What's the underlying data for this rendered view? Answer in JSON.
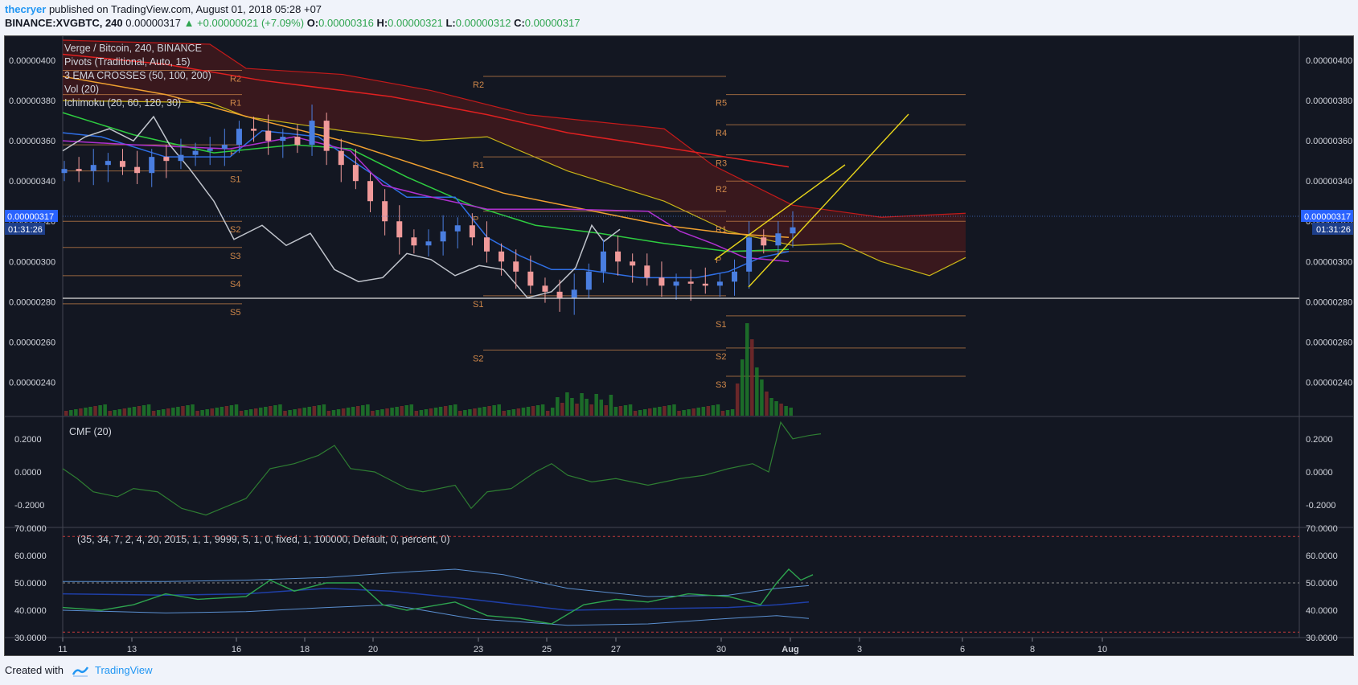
{
  "header": {
    "username": "thecryer",
    "published_text": "published on TradingView.com, August 01, 2018 05:28 +07",
    "symbol_line": "BINANCE:XVGBTC, 240",
    "last_price": "0.00000317",
    "change": "▲ +0.00000021 (+7.09%)",
    "o_label": "O:",
    "o_value": "0.00000316",
    "h_label": "H:",
    "h_value": "0.00000321",
    "l_label": "L:",
    "l_value": "0.00000312",
    "c_label": "C:",
    "c_value": "0.00000317"
  },
  "legend": {
    "title": "Verge / Bitcoin, 240, BINANCE",
    "pivots": "Pivots (Traditional, Auto, 15)",
    "ema": "3 EMA CROSSES (50, 100, 200)",
    "vol": "Vol (20)",
    "ichimoku": "Ichimoku (20, 60, 120, 30)"
  },
  "cmf_label": "CMF (20)",
  "osc_label": "(35, 34, 7, 2, 4, 20, 2015, 1, 1, 9999, 5, 1, 0, fixed, 1, 100000, Default, 0, percent, 0)",
  "price_badge": {
    "value": "0.00000317",
    "countdown": "01:31:26"
  },
  "footer": {
    "created_with": "Created with",
    "brand": "TradingView"
  },
  "colors": {
    "background": "#131722",
    "up": "#4a7ee0",
    "down": "#f09a9a",
    "pivot": "#d0884a",
    "ema_fast": "#2ecc40",
    "ema_mid": "#f0a030",
    "ema_slow": "#e02020",
    "cloud": "#5a1a1a"
  },
  "chart_data": [
    {
      "type": "candlestick",
      "title": "Verge / Bitcoin, 240, BINANCE",
      "symbol": "BINANCE:XVGBTC",
      "interval": "240",
      "y_ticks": [
        "0.00000400",
        "0.00000380",
        "0.00000360",
        "0.00000340",
        "0.00000320",
        "0.00000300",
        "0.00000280",
        "0.00000260",
        "0.00000240"
      ],
      "ylim": [
        2.23e-06,
        4.12e-06
      ],
      "x_ticks": [
        "11",
        "13",
        "16",
        "18",
        "20",
        "23",
        "25",
        "27",
        "30",
        "Aug",
        "3",
        "6",
        "8",
        "10"
      ],
      "close_series_approx": [
        3.46,
        3.45,
        3.48,
        3.5,
        3.47,
        3.44,
        3.52,
        3.5,
        3.53,
        3.55,
        3.56,
        3.58,
        3.66,
        3.65,
        3.6,
        3.62,
        3.58,
        3.7,
        3.55,
        3.48,
        3.4,
        3.3,
        3.2,
        3.12,
        3.08,
        3.1,
        3.15,
        3.18,
        3.12,
        3.05,
        3.0,
        2.95,
        2.88,
        2.85,
        2.82,
        2.86,
        2.95,
        3.05,
        3.0,
        2.98,
        2.92,
        2.88,
        2.9,
        2.89,
        2.88,
        2.9,
        2.95,
        3.12,
        3.08,
        3.14,
        3.17
      ],
      "price_scale_multiplier": "1e-6",
      "annotations": [
        "ascending channel drawn in yellow",
        "horizontal white support line near 0.00000272"
      ]
    },
    {
      "type": "line",
      "title": "CMF (20)",
      "y_ticks": [
        "0.2000",
        "0.0000",
        "-0.2000"
      ],
      "ylim": [
        -0.33,
        0.33
      ]
    },
    {
      "type": "line",
      "title": "(35, 34, 7, 2, 4, 20, 2015, 1, 1, 9999, 5, 1, 0, fixed, 1, 100000, Default, 0, percent, 0)",
      "y_ticks": [
        "70.0000",
        "60.0000",
        "50.0000",
        "40.0000",
        "30.0000"
      ],
      "ylim": [
        30,
        70
      ]
    }
  ],
  "pivot_labels": {
    "set1": [
      "R2",
      "R1",
      "P",
      "S1",
      "S2",
      "S3",
      "S4",
      "S5"
    ],
    "set2": [
      "R2",
      "R1",
      "P",
      "S1",
      "S2"
    ],
    "set3": [
      "R5",
      "R4",
      "R3",
      "R2",
      "R1",
      "P",
      "S1",
      "S2",
      "S3"
    ]
  }
}
